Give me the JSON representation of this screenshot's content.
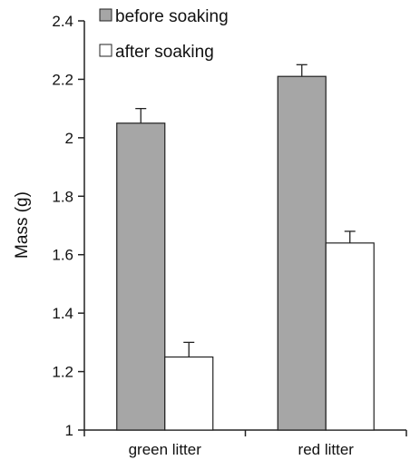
{
  "chart_data": {
    "type": "bar",
    "categories": [
      "green litter",
      "red litter"
    ],
    "series": [
      {
        "name": "before soaking",
        "values": [
          2.05,
          2.21
        ],
        "errors": [
          0.05,
          0.04
        ],
        "color": "#a6a6a6"
      },
      {
        "name": "after soaking",
        "values": [
          1.25,
          1.64
        ],
        "errors": [
          0.05,
          0.04
        ],
        "color": "#ffffff"
      }
    ],
    "ylabel": "Mass (g)",
    "xlabel": "",
    "ylim": [
      1,
      2.4
    ],
    "yticks": [
      1,
      1.2,
      1.4,
      1.6,
      1.8,
      2,
      2.2,
      2.4
    ],
    "ytick_labels": [
      "1",
      "1.2",
      "1.4",
      "1.6",
      "1.8",
      "2",
      "2.2",
      "2.4"
    ],
    "grid": false,
    "legend_position": "top-left"
  }
}
